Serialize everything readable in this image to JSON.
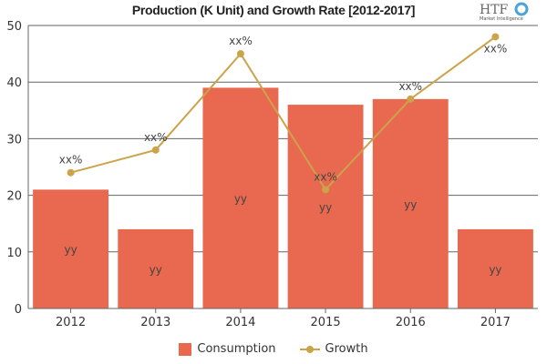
{
  "chart_data": {
    "type": "bar",
    "title": "Production (K Unit) and Growth Rate [2012-2017]",
    "categories": [
      "2012",
      "2013",
      "2014",
      "2015",
      "2016",
      "2017"
    ],
    "ylim": [
      0,
      50
    ],
    "yticks": [
      0,
      10,
      20,
      30,
      40,
      50
    ],
    "grid": true,
    "legend_placement": "bottom",
    "series": [
      {
        "name": "Consumption",
        "type": "bar",
        "color": "#e8694f",
        "values": [
          21,
          14,
          39,
          36,
          37,
          14
        ],
        "data_labels": [
          "yy",
          "yy",
          "yy",
          "yy",
          "yy",
          "yy"
        ]
      },
      {
        "name": "Growth",
        "type": "line",
        "color": "#cca24a",
        "values": [
          24,
          28,
          45,
          21,
          37,
          48
        ],
        "data_labels": [
          "xx%",
          "xx%",
          "xx%",
          "xx%",
          "xx%",
          "xx%"
        ]
      }
    ]
  },
  "logo": {
    "text": "HTF",
    "subtext": "Market Intelligence"
  }
}
